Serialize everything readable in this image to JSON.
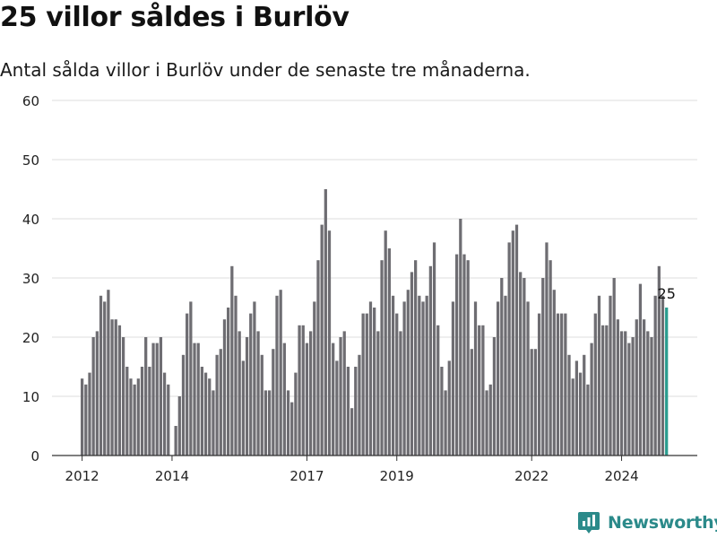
{
  "title": "25 villor såldes i Burlöv",
  "subtitle": "Antal sålda villor i Burlöv under de senaste tre månaderna.",
  "brand": {
    "name": "Newsworthy",
    "icon": "newsworthy-logo-icon",
    "color": "#2b8a8a"
  },
  "chart_data": {
    "type": "bar",
    "title": "25 villor såldes i Burlöv",
    "xlabel": "",
    "ylabel": "",
    "ylim": [
      0,
      60
    ],
    "yticks": [
      0,
      10,
      20,
      30,
      40,
      50,
      60
    ],
    "xticks": [
      {
        "label": "2012",
        "year": 2012
      },
      {
        "label": "2014",
        "year": 2014
      },
      {
        "label": "2017",
        "year": 2017
      },
      {
        "label": "2019",
        "year": 2019
      },
      {
        "label": "2022",
        "year": 2022
      },
      {
        "label": "2024",
        "year": 2024
      }
    ],
    "grid": true,
    "bar_color": "#6e6d72",
    "highlight_color": "#2a9d8f",
    "start": "2012-01",
    "values": [
      13,
      12,
      14,
      20,
      21,
      27,
      26,
      28,
      23,
      23,
      22,
      20,
      15,
      13,
      12,
      13,
      15,
      20,
      15,
      19,
      19,
      20,
      14,
      12,
      0,
      5,
      10,
      17,
      24,
      26,
      19,
      19,
      15,
      14,
      13,
      11,
      17,
      18,
      23,
      25,
      32,
      27,
      21,
      16,
      20,
      24,
      26,
      21,
      17,
      11,
      11,
      18,
      27,
      28,
      19,
      11,
      9,
      14,
      22,
      22,
      19,
      21,
      26,
      33,
      39,
      45,
      38,
      19,
      16,
      20,
      21,
      15,
      8,
      15,
      17,
      24,
      24,
      26,
      25,
      21,
      33,
      38,
      35,
      27,
      24,
      21,
      26,
      28,
      31,
      33,
      27,
      26,
      27,
      32,
      36,
      22,
      15,
      11,
      16,
      26,
      34,
      40,
      34,
      33,
      18,
      26,
      22,
      22,
      11,
      12,
      20,
      26,
      30,
      27,
      36,
      38,
      39,
      31,
      30,
      26,
      18,
      18,
      24,
      30,
      36,
      33,
      28,
      24,
      24,
      24,
      17,
      13,
      16,
      14,
      17,
      12,
      19,
      24,
      27,
      22,
      22,
      27,
      30,
      23,
      21,
      21,
      19,
      20,
      23,
      29,
      23,
      21,
      20,
      27,
      32,
      27,
      25
    ],
    "highlight_index": 156,
    "annotation": "25"
  }
}
